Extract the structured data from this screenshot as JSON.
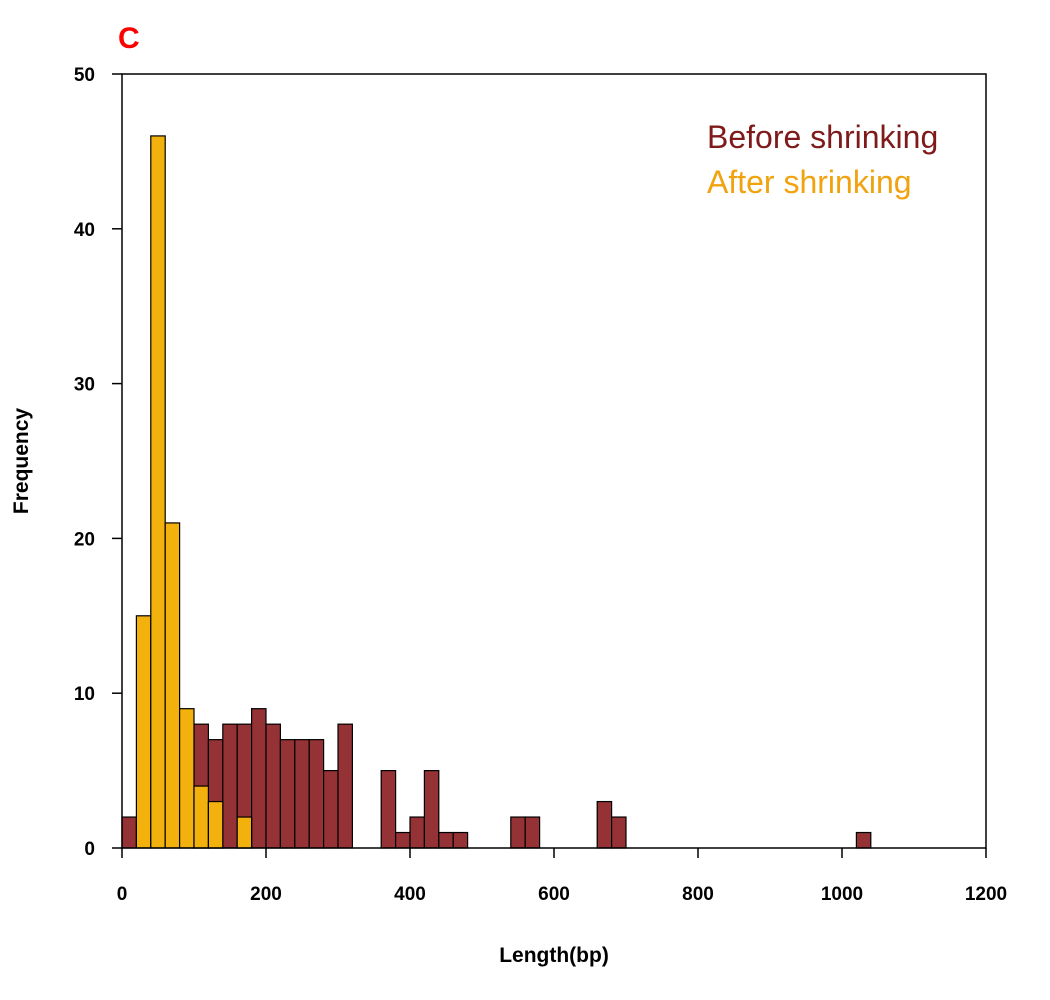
{
  "panel_label": "C",
  "colors": {
    "panel_label": "#ff0000",
    "before": "#953235",
    "after": "#f2b10c",
    "before_legend": "#7f1a1a",
    "after_legend": "#f0a30f",
    "outline": "#000000"
  },
  "chart_data": {
    "type": "bar",
    "title": "",
    "xlabel": "Length(bp)",
    "ylabel": "Frequency",
    "xlim": [
      0,
      1200
    ],
    "ylim": [
      0,
      50
    ],
    "xticks": [
      0,
      200,
      400,
      600,
      800,
      1000,
      1200
    ],
    "yticks": [
      0,
      10,
      20,
      30,
      40,
      50
    ],
    "bin_width": 20,
    "grid": false,
    "legend_position": "top-right",
    "series": [
      {
        "name": "Before shrinking",
        "color": "#953235",
        "bins": [
          {
            "x0": 0,
            "x1": 20,
            "count": 2
          },
          {
            "x0": 100,
            "x1": 120,
            "count": 8
          },
          {
            "x0": 120,
            "x1": 140,
            "count": 7
          },
          {
            "x0": 140,
            "x1": 160,
            "count": 8
          },
          {
            "x0": 160,
            "x1": 180,
            "count": 8
          },
          {
            "x0": 180,
            "x1": 200,
            "count": 9
          },
          {
            "x0": 200,
            "x1": 220,
            "count": 8
          },
          {
            "x0": 220,
            "x1": 240,
            "count": 7
          },
          {
            "x0": 240,
            "x1": 260,
            "count": 7
          },
          {
            "x0": 260,
            "x1": 280,
            "count": 7
          },
          {
            "x0": 280,
            "x1": 300,
            "count": 5
          },
          {
            "x0": 300,
            "x1": 320,
            "count": 8
          },
          {
            "x0": 320,
            "x1": 340,
            "count": 0
          },
          {
            "x0": 340,
            "x1": 360,
            "count": 0
          },
          {
            "x0": 360,
            "x1": 380,
            "count": 5
          },
          {
            "x0": 380,
            "x1": 400,
            "count": 1
          },
          {
            "x0": 400,
            "x1": 420,
            "count": 2
          },
          {
            "x0": 420,
            "x1": 440,
            "count": 5
          },
          {
            "x0": 440,
            "x1": 460,
            "count": 1
          },
          {
            "x0": 460,
            "x1": 480,
            "count": 1
          },
          {
            "x0": 540,
            "x1": 560,
            "count": 2
          },
          {
            "x0": 560,
            "x1": 580,
            "count": 2
          },
          {
            "x0": 660,
            "x1": 680,
            "count": 3
          },
          {
            "x0": 680,
            "x1": 700,
            "count": 2
          },
          {
            "x0": 1020,
            "x1": 1040,
            "count": 1
          }
        ]
      },
      {
        "name": "After shrinking",
        "color": "#f2b10c",
        "bins": [
          {
            "x0": 20,
            "x1": 40,
            "count": 15
          },
          {
            "x0": 40,
            "x1": 60,
            "count": 46
          },
          {
            "x0": 60,
            "x1": 80,
            "count": 21
          },
          {
            "x0": 80,
            "x1": 100,
            "count": 9
          },
          {
            "x0": 100,
            "x1": 120,
            "count": 4
          },
          {
            "x0": 120,
            "x1": 140,
            "count": 3
          },
          {
            "x0": 160,
            "x1": 180,
            "count": 2
          }
        ]
      }
    ]
  }
}
